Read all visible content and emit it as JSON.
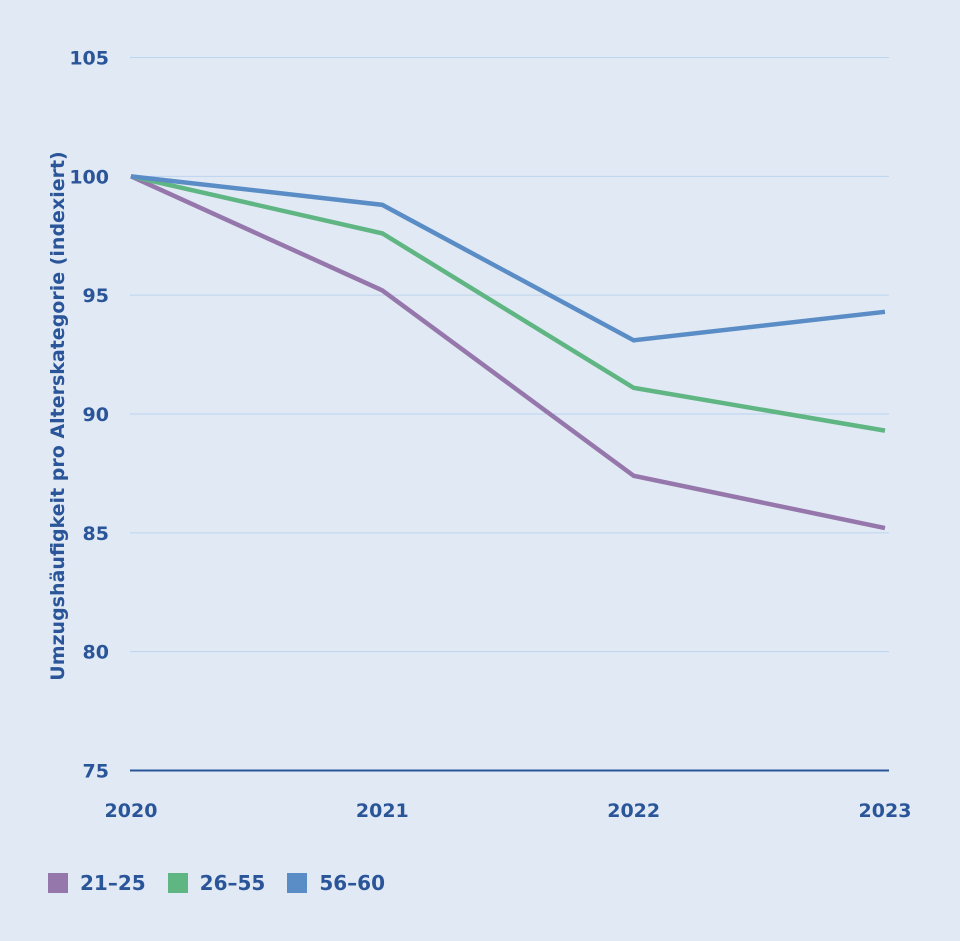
{
  "chart_data": {
    "type": "line",
    "title": "",
    "xlabel": "",
    "ylabel": "Umzugshäufigkeit pro Alterskategorie (indexiert)",
    "x": [
      "2020",
      "2021",
      "2022",
      "2023"
    ],
    "ylim": [
      75,
      105
    ],
    "yticks": [
      "75",
      "80",
      "85",
      "90",
      "95",
      "100",
      "105"
    ],
    "ytick_values": [
      75,
      80,
      85,
      90,
      95,
      100,
      105
    ],
    "grid": true,
    "legend_position": "bottom-left",
    "series": [
      {
        "name": "21–25",
        "color": "#9677ab",
        "values": [
          100,
          95.2,
          87.4,
          85.2
        ]
      },
      {
        "name": "26–55",
        "color": "#5fb683",
        "values": [
          100,
          97.6,
          91.1,
          89.3
        ]
      },
      {
        "name": "56–60",
        "color": "#5a8dc6",
        "values": [
          100,
          98.8,
          93.1,
          94.3
        ]
      }
    ]
  },
  "colors": {
    "background": "#e1e9f5",
    "text": "#2a5599",
    "gridline": "#bcd4ee",
    "axis": "#2a5599"
  }
}
